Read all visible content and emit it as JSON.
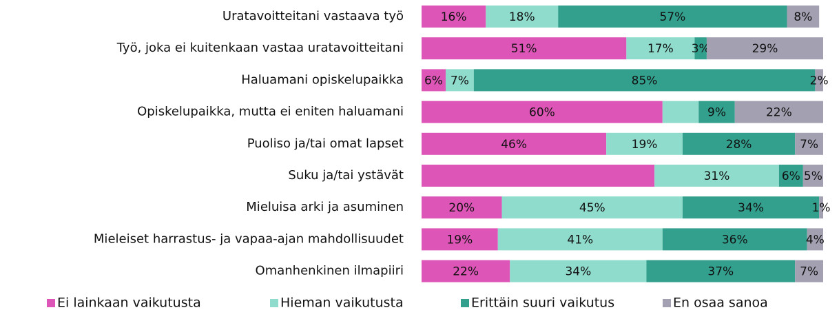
{
  "chart_data": {
    "type": "bar",
    "orientation": "horizontal",
    "stacked": true,
    "categories": [
      "Uratavoitteitani vastaava työ",
      "Työ, joka ei kuitenkaan vastaa uratavoitteitani",
      "Haluamani opiskelupaikka",
      "Opiskelupaikka, mutta ei eniten haluamani",
      "Puoliso ja/tai omat lapset",
      "Suku ja/tai ystävät",
      "Mieluisa arki ja asuminen",
      "Mieleiset harrastus- ja vapaa-ajan mahdollisuudet",
      "Omanhenkinen ilmapiiri"
    ],
    "xlim": [
      0,
      100
    ],
    "legend": "bottom",
    "series": [
      {
        "name": "Ei lainkaan vaikutusta",
        "color": "#de55b8",
        "values": [
          16,
          51,
          6,
          60,
          46,
          58,
          20,
          19,
          22
        ],
        "value_labels": [
          "16%",
          "51%",
          "6%",
          "60%",
          "46%",
          null,
          "20%",
          "19%",
          "22%"
        ]
      },
      {
        "name": "Hieman vaikutusta",
        "color": "#8fdccd",
        "values": [
          18,
          17,
          7,
          9,
          19,
          31,
          45,
          41,
          34
        ],
        "value_labels": [
          "18%",
          "17%",
          "7%",
          null,
          "19%",
          "31%",
          "45%",
          "41%",
          "34%"
        ]
      },
      {
        "name": "Erittäin suuri vaikutus",
        "color": "#33a08e",
        "values": [
          57,
          3,
          85,
          9,
          28,
          6,
          34,
          36,
          37
        ],
        "value_labels": [
          "57%",
          "3%",
          "85%",
          "9%",
          "28%",
          "6%",
          "34%",
          "36%",
          "37%"
        ]
      },
      {
        "name": "En osaa sanoa",
        "color": "#a2a0b1",
        "values": [
          8,
          29,
          2,
          22,
          7,
          5,
          1,
          4,
          7
        ],
        "value_labels": [
          "8%",
          "29%",
          "2%",
          "22%",
          "7%",
          "5%",
          "1%",
          "4%",
          "7%"
        ]
      }
    ]
  }
}
